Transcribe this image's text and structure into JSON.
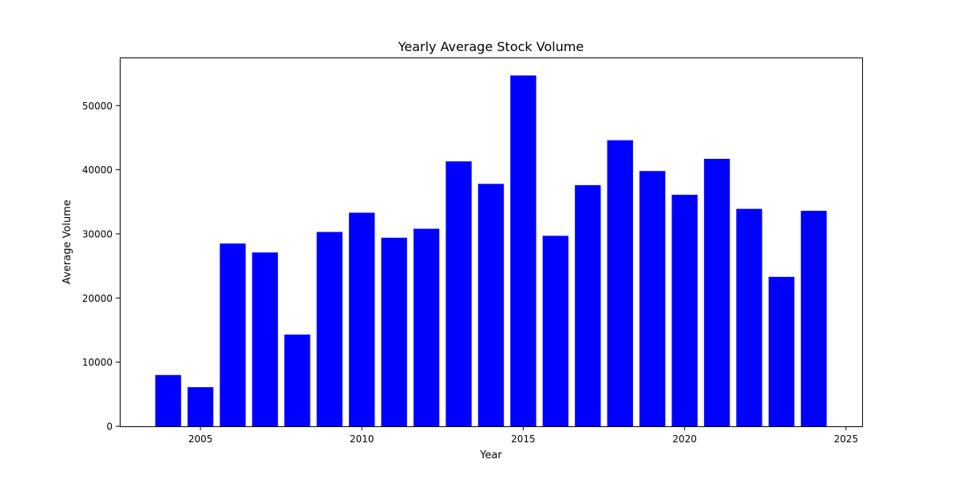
{
  "chart_data": {
    "type": "bar",
    "title": "Yearly Average Stock Volume",
    "xlabel": "Year",
    "ylabel": "Average Volume",
    "x": [
      2004,
      2005,
      2006,
      2007,
      2008,
      2009,
      2010,
      2011,
      2012,
      2013,
      2014,
      2015,
      2016,
      2017,
      2018,
      2019,
      2020,
      2021,
      2022,
      2023,
      2024
    ],
    "values": [
      8000,
      6100,
      28500,
      27100,
      14300,
      30300,
      33300,
      29400,
      30800,
      41300,
      37800,
      54700,
      29700,
      37600,
      44600,
      39800,
      36100,
      41700,
      33900,
      23300,
      33600
    ],
    "xlim": [
      2002.5,
      2025.5
    ],
    "ylim": [
      0,
      57500
    ],
    "xticks": [
      2005,
      2010,
      2015,
      2020,
      2025
    ],
    "yticks": [
      0,
      10000,
      20000,
      30000,
      40000,
      50000
    ],
    "bar_color": "#0000ff",
    "grid": false,
    "legend": false
  }
}
